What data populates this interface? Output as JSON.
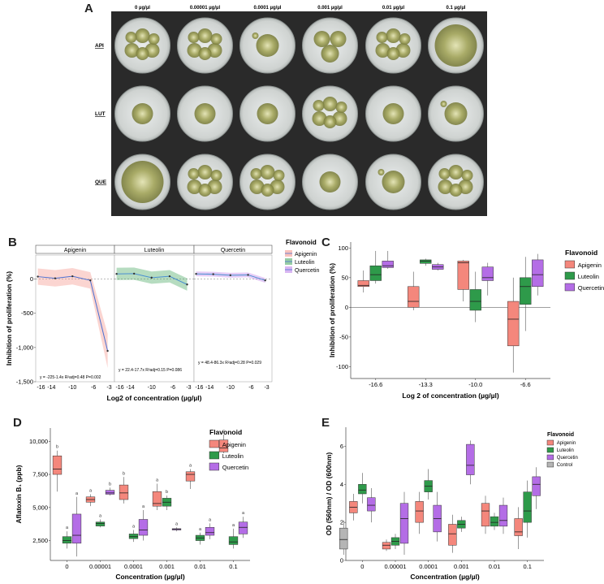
{
  "panel_letters": {
    "A": "A",
    "B": "B",
    "C": "C",
    "D": "D",
    "E": "E"
  },
  "panelA": {
    "col_headers": [
      "0 µg/µl",
      "0.00001 µg/µl",
      "0.0001 µg/µl",
      "0.001 µg/µl",
      "0.01 µg/µl",
      "0.1 µg/µl"
    ],
    "row_labels": [
      "API",
      "LUT",
      "QUE"
    ]
  },
  "chart_data": [
    {
      "id": "B",
      "type": "line",
      "facets": [
        "Apigenin",
        "Luteolin",
        "Quercetin"
      ],
      "ylabel": "Inhibition of proliferation (%)",
      "xlabel": "Log2 of concentration (µg/µl)",
      "yticks": [
        0,
        -500,
        -1000,
        -1500
      ],
      "ytick_labels": [
        "0",
        "-500",
        "-1,000",
        "-1,500"
      ],
      "ylim": [
        -1500,
        350
      ],
      "xlim": [
        -17,
        -2
      ],
      "xticks": [
        -16,
        -14,
        -10,
        -6,
        -3
      ],
      "legend_title": "Flavonoid",
      "legend": [
        "Apigenin",
        "Luteolin",
        "Quercetin"
      ],
      "colors": [
        "#f4877c",
        "#2e9a4a",
        "#b46de6"
      ],
      "series": [
        {
          "name": "Apigenin",
          "x": [
            -16.6,
            -13.3,
            -10.0,
            -6.6,
            -3.3
          ],
          "y": [
            35,
            10,
            40,
            -20,
            -1050
          ]
        },
        {
          "name": "Luteolin",
          "x": [
            -16.6,
            -13.3,
            -10.0,
            -6.6,
            -3.3
          ],
          "y": [
            75,
            78,
            20,
            40,
            -80
          ]
        },
        {
          "name": "Quercetin",
          "x": [
            -16.6,
            -13.3,
            -10.0,
            -6.6,
            -3.3
          ],
          "y": [
            75,
            70,
            55,
            60,
            -20
          ]
        }
      ],
      "equations": [
        "y = -225-1.4x R²adj=0.48 P=0.002",
        "y = 22.4-17.7x R²adj=0.15 P=0.086",
        "y = 48.4-86.3x R²adj=0.28 P=0.029"
      ]
    },
    {
      "id": "C",
      "type": "box",
      "ylabel": "Inhibition of proliferation (%)",
      "xlabel": "Log 2 of concentration (µg/µl)",
      "ylim": [
        -120,
        110
      ],
      "yticks": [
        100,
        50,
        0,
        -50,
        -100
      ],
      "categories": [
        "-16.6",
        "-13.3",
        "-10.0",
        "-6.6"
      ],
      "legend_title": "Flavonoid",
      "legend": [
        "Apigenin",
        "Luteolin",
        "Quercetin"
      ],
      "colors": [
        "#f4877c",
        "#2e9a4a",
        "#b46de6"
      ],
      "series": [
        {
          "name": "Apigenin",
          "boxes": [
            [
              25,
              35,
              37,
              45,
              62
            ],
            [
              -5,
              0,
              10,
              35,
              60
            ],
            [
              10,
              30,
              75,
              78,
              80
            ],
            [
              -110,
              -65,
              -20,
              10,
              50
            ]
          ]
        },
        {
          "name": "Luteolin",
          "boxes": [
            [
              40,
              45,
              55,
              70,
              95
            ],
            [
              70,
              74,
              78,
              80,
              82
            ],
            [
              -25,
              -5,
              10,
              30,
              60
            ],
            [
              -40,
              5,
              35,
              50,
              85
            ]
          ]
        },
        {
          "name": "Quercetin",
          "boxes": [
            [
              65,
              67,
              70,
              78,
              95
            ],
            [
              62,
              64,
              68,
              72,
              75
            ],
            [
              20,
              45,
              50,
              68,
              75
            ],
            [
              20,
              35,
              55,
              80,
              90
            ]
          ]
        }
      ]
    },
    {
      "id": "D",
      "type": "box",
      "ylabel": "Aflatoxin B₁ (ppb)",
      "xlabel": "Concentration (µg/µl)",
      "ylim": [
        1000,
        11000
      ],
      "yticks": [
        2500,
        5000,
        7500,
        10000
      ],
      "ytick_labels": [
        "2,500",
        "5,000",
        "7,500",
        "10,000"
      ],
      "categories": [
        "0",
        "0.00001",
        "0.0001",
        "0.001",
        "0.01",
        "0.1"
      ],
      "legend_title": "Flavonoid",
      "legend": [
        "Apigenin",
        "Luteolin",
        "Quercetin"
      ],
      "colors": [
        "#f4877c",
        "#2e9a4a",
        "#b46de6"
      ],
      "letters": {
        "Apigenin": [
          "b",
          "a",
          "b",
          "a",
          "a",
          "c"
        ],
        "Luteolin": [
          "a",
          "a",
          "a",
          "b",
          "a",
          "a"
        ],
        "Quercetin": [
          "a",
          "b",
          "a",
          "a",
          "a",
          "a"
        ]
      },
      "series": [
        {
          "name": "Apigenin",
          "boxes": [
            [
              6200,
              7500,
              7900,
              8900,
              9300
            ],
            [
              5100,
              5400,
              5600,
              5800,
              6000
            ],
            [
              5300,
              5600,
              6100,
              6700,
              7300
            ],
            [
              4800,
              5100,
              5300,
              6200,
              6800
            ],
            [
              6400,
              7000,
              7500,
              7700,
              7900
            ],
            [
              9100,
              9200,
              9500,
              10100,
              10500
            ]
          ]
        },
        {
          "name": "Luteolin",
          "boxes": [
            [
              1900,
              2300,
              2500,
              2800,
              3200
            ],
            [
              3500,
              3600,
              3800,
              3900,
              4100
            ],
            [
              2400,
              2650,
              2800,
              3000,
              3300
            ],
            [
              4800,
              5100,
              5400,
              5700,
              5900
            ],
            [
              2200,
              2500,
              2700,
              2900,
              3100
            ],
            [
              1900,
              2200,
              2400,
              2800,
              3400
            ]
          ]
        },
        {
          "name": "Quercetin",
          "boxes": [
            [
              1300,
              2300,
              2900,
              4500,
              5800
            ],
            [
              5900,
              6000,
              6100,
              6300,
              6500
            ],
            [
              2500,
              2900,
              3300,
              4100,
              4800
            ],
            [
              3200,
              3300,
              3350,
              3400,
              3500
            ],
            [
              2600,
              2900,
              3100,
              3500,
              3800
            ],
            [
              2700,
              3000,
              3500,
              3900,
              4300
            ]
          ]
        }
      ]
    },
    {
      "id": "E",
      "type": "box",
      "ylabel": "OD (560nm) / OD (600nm)",
      "xlabel": "Concentration (µg/µl)",
      "ylim": [
        0,
        7
      ],
      "yticks": [
        0,
        2,
        4,
        6
      ],
      "categories": [
        "0",
        "0.00001",
        "0.0001",
        "0.001",
        "0.01",
        "0.1"
      ],
      "legend_title": "Flavonoid",
      "legend": [
        "Apigenin",
        "Luteolin",
        "Quercetin",
        "Control"
      ],
      "colors": [
        "#f4877c",
        "#2e9a4a",
        "#b46de6",
        "#b5b5b5"
      ],
      "series": [
        {
          "name": "Apigenin",
          "boxes": [
            [
              2.1,
              2.5,
              2.8,
              3.1,
              3.5
            ],
            [
              0.5,
              0.6,
              0.8,
              0.95,
              1.1
            ],
            [
              1.4,
              2.0,
              2.6,
              3.1,
              3.6
            ],
            [
              0.4,
              0.8,
              1.4,
              1.9,
              2.4
            ],
            [
              1.4,
              1.8,
              2.6,
              3.0,
              3.4
            ],
            [
              0.6,
              1.3,
              1.5,
              2.2,
              2.8
            ]
          ]
        },
        {
          "name": "Luteolin",
          "boxes": [
            [
              3.0,
              3.5,
              3.7,
              4.0,
              4.6
            ],
            [
              0.6,
              0.8,
              1.0,
              1.2,
              1.4
            ],
            [
              3.2,
              3.6,
              3.9,
              4.2,
              4.8
            ],
            [
              1.5,
              1.7,
              1.9,
              2.1,
              2.3
            ],
            [
              1.6,
              1.8,
              2.0,
              2.3,
              2.5
            ],
            [
              1.2,
              2.0,
              2.6,
              3.6,
              4.2
            ]
          ]
        },
        {
          "name": "Quercetin",
          "boxes": [
            [
              2.0,
              2.6,
              2.9,
              3.3,
              3.8
            ],
            [
              0.3,
              0.9,
              2.2,
              3.0,
              3.6
            ],
            [
              1.0,
              1.5,
              2.2,
              2.9,
              3.6
            ],
            [
              4.0,
              4.5,
              5.0,
              6.1,
              6.3
            ],
            [
              1.4,
              1.8,
              2.1,
              2.9,
              3.3
            ],
            [
              2.7,
              3.4,
              4.0,
              4.4,
              4.9
            ]
          ]
        },
        {
          "name": "Control",
          "boxes": [
            [
              0.3,
              0.6,
              1.1,
              1.7,
              2.1
            ]
          ]
        }
      ]
    }
  ]
}
